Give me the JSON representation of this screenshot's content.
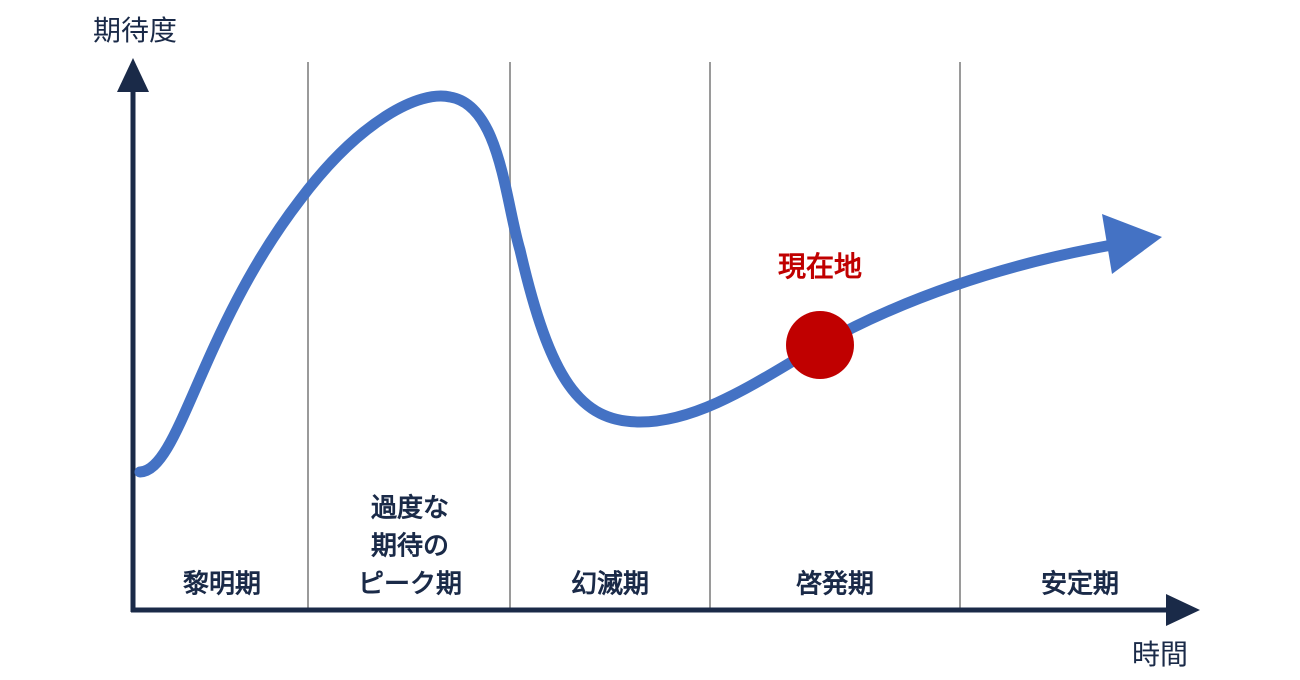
{
  "axes": {
    "y_label": "期待度",
    "x_label": "時間"
  },
  "phases": [
    {
      "lines": [
        "黎明期"
      ]
    },
    {
      "lines": [
        "過度な",
        "期待の",
        "ピーク期"
      ]
    },
    {
      "lines": [
        "幻滅期"
      ]
    },
    {
      "lines": [
        "啓発期"
      ]
    },
    {
      "lines": [
        "安定期"
      ]
    }
  ],
  "marker": {
    "label": "現在地"
  }
}
